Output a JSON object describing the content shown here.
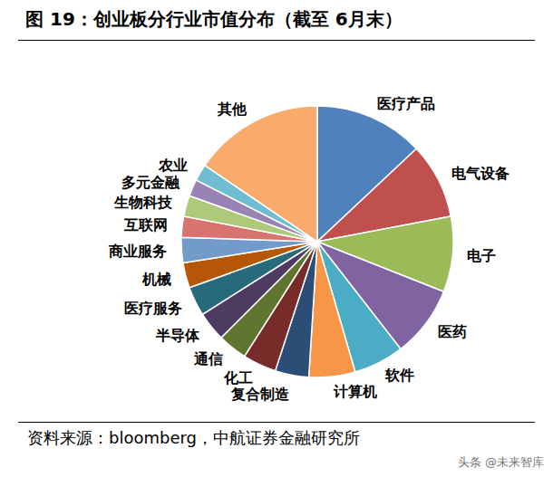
{
  "chart_data": {
    "type": "pie",
    "title": "图 19：创业板分行业市值分布（截至 6月末）",
    "categories": [
      "医疗产品",
      "电气设备",
      "电子",
      "医药",
      "软件",
      "计算机",
      "复合制造",
      "化工",
      "通信",
      "半导体",
      "医疗服务",
      "机械",
      "商业服务",
      "互联网",
      "生物科技",
      "多元金融",
      "农业",
      "其他"
    ],
    "values": [
      13,
      9,
      9,
      8.5,
      6,
      5.5,
      4,
      4,
      3.5,
      3.5,
      3.5,
      3,
      3,
      2.5,
      2.5,
      2,
      2,
      15.5
    ],
    "colors": [
      "#4f81bd",
      "#c0504d",
      "#9bbb59",
      "#8064a2",
      "#4bacc6",
      "#f79646",
      "#2c4d75",
      "#772c2a",
      "#5f7530",
      "#4d3b62",
      "#276a7c",
      "#b65708",
      "#729aca",
      "#d9736f",
      "#afc97a",
      "#9983b5",
      "#6fbdd1",
      "#f9ab6b"
    ],
    "source": "资料来源：bloomberg，中航证券金融研究所",
    "watermark": "头条 @未来智库"
  }
}
